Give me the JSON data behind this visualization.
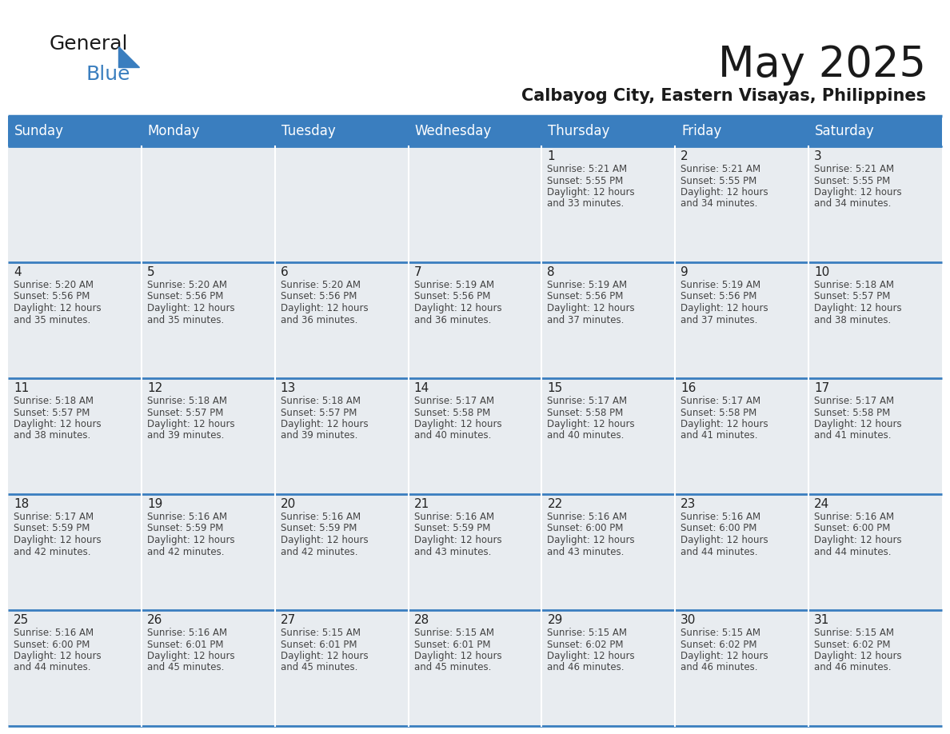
{
  "title": "May 2025",
  "subtitle": "Calbayog City, Eastern Visayas, Philippines",
  "header_bg_color": "#3a7ebf",
  "header_text_color": "#ffffff",
  "cell_bg_color": "#e8ecf0",
  "border_color": "#3a7ebf",
  "day_num_color": "#222222",
  "info_color": "#444444",
  "days_of_week": [
    "Sunday",
    "Monday",
    "Tuesday",
    "Wednesday",
    "Thursday",
    "Friday",
    "Saturday"
  ],
  "weeks": [
    [
      {
        "day": "",
        "info": ""
      },
      {
        "day": "",
        "info": ""
      },
      {
        "day": "",
        "info": ""
      },
      {
        "day": "",
        "info": ""
      },
      {
        "day": "1",
        "info": "Sunrise: 5:21 AM\nSunset: 5:55 PM\nDaylight: 12 hours\nand 33 minutes."
      },
      {
        "day": "2",
        "info": "Sunrise: 5:21 AM\nSunset: 5:55 PM\nDaylight: 12 hours\nand 34 minutes."
      },
      {
        "day": "3",
        "info": "Sunrise: 5:21 AM\nSunset: 5:55 PM\nDaylight: 12 hours\nand 34 minutes."
      }
    ],
    [
      {
        "day": "4",
        "info": "Sunrise: 5:20 AM\nSunset: 5:56 PM\nDaylight: 12 hours\nand 35 minutes."
      },
      {
        "day": "5",
        "info": "Sunrise: 5:20 AM\nSunset: 5:56 PM\nDaylight: 12 hours\nand 35 minutes."
      },
      {
        "day": "6",
        "info": "Sunrise: 5:20 AM\nSunset: 5:56 PM\nDaylight: 12 hours\nand 36 minutes."
      },
      {
        "day": "7",
        "info": "Sunrise: 5:19 AM\nSunset: 5:56 PM\nDaylight: 12 hours\nand 36 minutes."
      },
      {
        "day": "8",
        "info": "Sunrise: 5:19 AM\nSunset: 5:56 PM\nDaylight: 12 hours\nand 37 minutes."
      },
      {
        "day": "9",
        "info": "Sunrise: 5:19 AM\nSunset: 5:56 PM\nDaylight: 12 hours\nand 37 minutes."
      },
      {
        "day": "10",
        "info": "Sunrise: 5:18 AM\nSunset: 5:57 PM\nDaylight: 12 hours\nand 38 minutes."
      }
    ],
    [
      {
        "day": "11",
        "info": "Sunrise: 5:18 AM\nSunset: 5:57 PM\nDaylight: 12 hours\nand 38 minutes."
      },
      {
        "day": "12",
        "info": "Sunrise: 5:18 AM\nSunset: 5:57 PM\nDaylight: 12 hours\nand 39 minutes."
      },
      {
        "day": "13",
        "info": "Sunrise: 5:18 AM\nSunset: 5:57 PM\nDaylight: 12 hours\nand 39 minutes."
      },
      {
        "day": "14",
        "info": "Sunrise: 5:17 AM\nSunset: 5:58 PM\nDaylight: 12 hours\nand 40 minutes."
      },
      {
        "day": "15",
        "info": "Sunrise: 5:17 AM\nSunset: 5:58 PM\nDaylight: 12 hours\nand 40 minutes."
      },
      {
        "day": "16",
        "info": "Sunrise: 5:17 AM\nSunset: 5:58 PM\nDaylight: 12 hours\nand 41 minutes."
      },
      {
        "day": "17",
        "info": "Sunrise: 5:17 AM\nSunset: 5:58 PM\nDaylight: 12 hours\nand 41 minutes."
      }
    ],
    [
      {
        "day": "18",
        "info": "Sunrise: 5:17 AM\nSunset: 5:59 PM\nDaylight: 12 hours\nand 42 minutes."
      },
      {
        "day": "19",
        "info": "Sunrise: 5:16 AM\nSunset: 5:59 PM\nDaylight: 12 hours\nand 42 minutes."
      },
      {
        "day": "20",
        "info": "Sunrise: 5:16 AM\nSunset: 5:59 PM\nDaylight: 12 hours\nand 42 minutes."
      },
      {
        "day": "21",
        "info": "Sunrise: 5:16 AM\nSunset: 5:59 PM\nDaylight: 12 hours\nand 43 minutes."
      },
      {
        "day": "22",
        "info": "Sunrise: 5:16 AM\nSunset: 6:00 PM\nDaylight: 12 hours\nand 43 minutes."
      },
      {
        "day": "23",
        "info": "Sunrise: 5:16 AM\nSunset: 6:00 PM\nDaylight: 12 hours\nand 44 minutes."
      },
      {
        "day": "24",
        "info": "Sunrise: 5:16 AM\nSunset: 6:00 PM\nDaylight: 12 hours\nand 44 minutes."
      }
    ],
    [
      {
        "day": "25",
        "info": "Sunrise: 5:16 AM\nSunset: 6:00 PM\nDaylight: 12 hours\nand 44 minutes."
      },
      {
        "day": "26",
        "info": "Sunrise: 5:16 AM\nSunset: 6:01 PM\nDaylight: 12 hours\nand 45 minutes."
      },
      {
        "day": "27",
        "info": "Sunrise: 5:15 AM\nSunset: 6:01 PM\nDaylight: 12 hours\nand 45 minutes."
      },
      {
        "day": "28",
        "info": "Sunrise: 5:15 AM\nSunset: 6:01 PM\nDaylight: 12 hours\nand 45 minutes."
      },
      {
        "day": "29",
        "info": "Sunrise: 5:15 AM\nSunset: 6:02 PM\nDaylight: 12 hours\nand 46 minutes."
      },
      {
        "day": "30",
        "info": "Sunrise: 5:15 AM\nSunset: 6:02 PM\nDaylight: 12 hours\nand 46 minutes."
      },
      {
        "day": "31",
        "info": "Sunrise: 5:15 AM\nSunset: 6:02 PM\nDaylight: 12 hours\nand 46 minutes."
      }
    ]
  ],
  "logo_text_general": "General",
  "logo_text_blue": "Blue",
  "logo_color_general": "#1a1a1a",
  "logo_color_blue": "#3a7ebf",
  "logo_triangle_color": "#3a7ebf",
  "title_fontsize": 38,
  "subtitle_fontsize": 15,
  "header_fontsize": 12,
  "day_num_fontsize": 11,
  "info_fontsize": 8.5
}
